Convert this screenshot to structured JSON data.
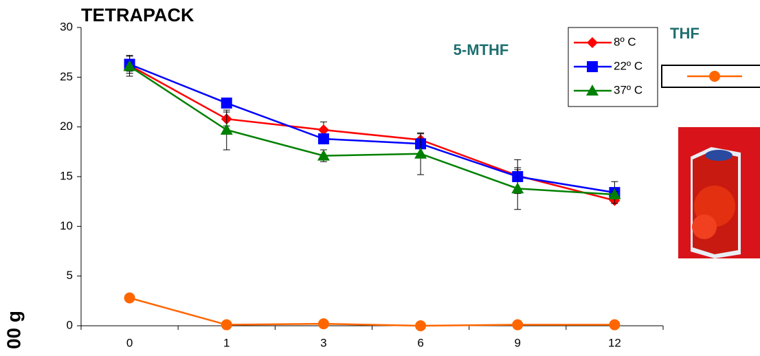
{
  "chart_data": {
    "type": "line",
    "title": "TETRAPACK",
    "y_label": "00 g",
    "annotations": [
      "5-MTHF"
    ],
    "categories": [
      "0",
      "1",
      "3",
      "6",
      "9",
      "12"
    ],
    "ylim": [
      0,
      30
    ],
    "yticks": [
      0,
      5,
      10,
      15,
      20,
      25,
      30
    ],
    "series": [
      {
        "name": "8º C",
        "color": "#ff0000",
        "marker": "diamond",
        "values": [
          26.2,
          20.8,
          19.7,
          18.7,
          15.1,
          12.6
        ],
        "errors": [
          0.6,
          0.7,
          0.8,
          0.6,
          0.6,
          0.3
        ]
      },
      {
        "name": "22º C",
        "color": "#0000ff",
        "marker": "square",
        "values": [
          26.3,
          22.4,
          18.8,
          18.3,
          15.0,
          13.4
        ],
        "errors": [
          0.9,
          0.4,
          0.4,
          0.4,
          1.7,
          1.1
        ]
      },
      {
        "name": "37º C",
        "color": "#008000",
        "marker": "triangle",
        "values": [
          26.1,
          19.7,
          17.1,
          17.3,
          13.8,
          13.2
        ],
        "errors": [
          1.0,
          2.0,
          0.6,
          2.1,
          2.1,
          0.3
        ]
      },
      {
        "name": "THF",
        "color": "#ff6600",
        "marker": "circle",
        "values": [
          2.8,
          0.1,
          0.2,
          0.0,
          0.1,
          0.1
        ]
      }
    ]
  }
}
